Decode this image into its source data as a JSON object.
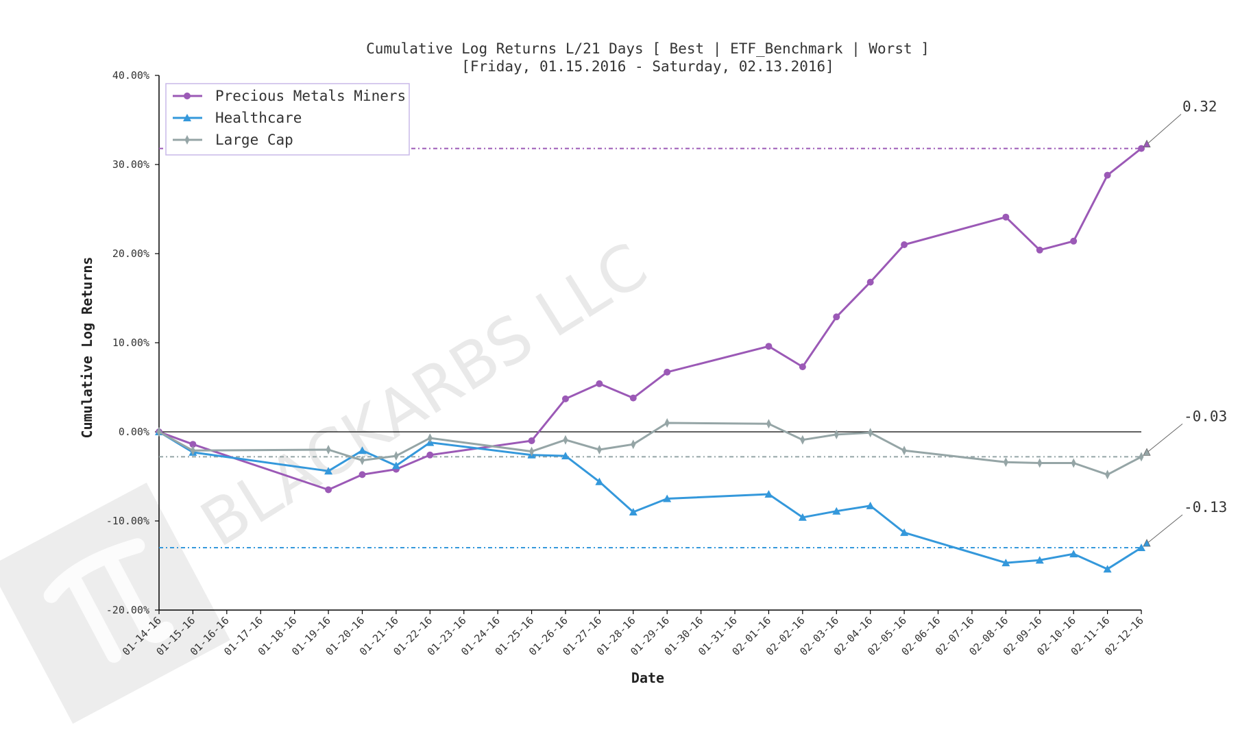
{
  "chart_data": {
    "type": "line",
    "title": "Cumulative Log Returns L/21 Days [ Best | ETF_Benchmark | Worst ]",
    "subtitle": "[Friday, 01.15.2016 - Saturday, 02.13.2016]",
    "xlabel": "Date",
    "ylabel": "Cumulative Log Returns",
    "ylim": [
      -0.2,
      0.4
    ],
    "yticks": [
      -0.2,
      -0.1,
      0.0,
      0.1,
      0.2,
      0.3,
      0.4
    ],
    "ytick_labels": [
      "-20.00%",
      "-10.00%",
      "0.00%",
      "10.00%",
      "20.00%",
      "30.00%",
      "40.00%"
    ],
    "legend_position": "top-left",
    "grid": false,
    "x_ticks": [
      "01-14-16",
      "01-15-16",
      "01-16-16",
      "01-17-16",
      "01-18-16",
      "01-19-16",
      "01-20-16",
      "01-21-16",
      "01-22-16",
      "01-23-16",
      "01-24-16",
      "01-25-16",
      "01-26-16",
      "01-27-16",
      "01-28-16",
      "01-29-16",
      "01-30-16",
      "01-31-16",
      "02-01-16",
      "02-02-16",
      "02-03-16",
      "02-04-16",
      "02-05-16",
      "02-06-16",
      "02-07-16",
      "02-08-16",
      "02-09-16",
      "02-10-16",
      "02-11-16",
      "02-12-16"
    ],
    "x": [
      "01-14-16",
      "01-15-16",
      "01-19-16",
      "01-20-16",
      "01-21-16",
      "01-22-16",
      "01-25-16",
      "01-26-16",
      "01-27-16",
      "01-28-16",
      "01-29-16",
      "02-01-16",
      "02-02-16",
      "02-03-16",
      "02-04-16",
      "02-05-16",
      "02-08-16",
      "02-09-16",
      "02-10-16",
      "02-11-16",
      "02-12-16"
    ],
    "series": [
      {
        "name": "Precious Metals Miners",
        "color": "#9b59b6",
        "marker": "circle",
        "values": [
          0.0,
          -0.014,
          -0.065,
          -0.048,
          -0.042,
          -0.026,
          -0.01,
          0.037,
          0.054,
          0.038,
          0.067,
          0.096,
          0.073,
          0.129,
          0.168,
          0.21,
          0.241,
          0.204,
          0.214,
          0.288,
          0.318
        ],
        "final_label": "0.32",
        "final_value": 0.318
      },
      {
        "name": "Healthcare",
        "color": "#3498db",
        "marker": "triangle",
        "values": [
          0.0,
          -0.023,
          -0.044,
          -0.021,
          -0.038,
          -0.012,
          -0.026,
          -0.027,
          -0.056,
          -0.09,
          -0.075,
          -0.07,
          -0.096,
          -0.089,
          -0.083,
          -0.113,
          -0.147,
          -0.144,
          -0.137,
          -0.154,
          -0.13
        ],
        "final_label": "-0.13",
        "final_value": -0.13
      },
      {
        "name": "Large Cap",
        "color": "#95a5a6",
        "marker": "thin_diamond",
        "values": [
          0.0,
          -0.021,
          -0.02,
          -0.032,
          -0.027,
          -0.007,
          -0.022,
          -0.009,
          -0.02,
          -0.014,
          0.01,
          0.009,
          -0.009,
          -0.003,
          -0.001,
          -0.021,
          -0.034,
          -0.035,
          -0.035,
          -0.048,
          -0.028
        ],
        "final_label": "-0.03",
        "final_value": -0.028
      }
    ]
  },
  "watermark": {
    "text": "BLACKARBS LLC",
    "logo_icon": "pi-icon"
  }
}
